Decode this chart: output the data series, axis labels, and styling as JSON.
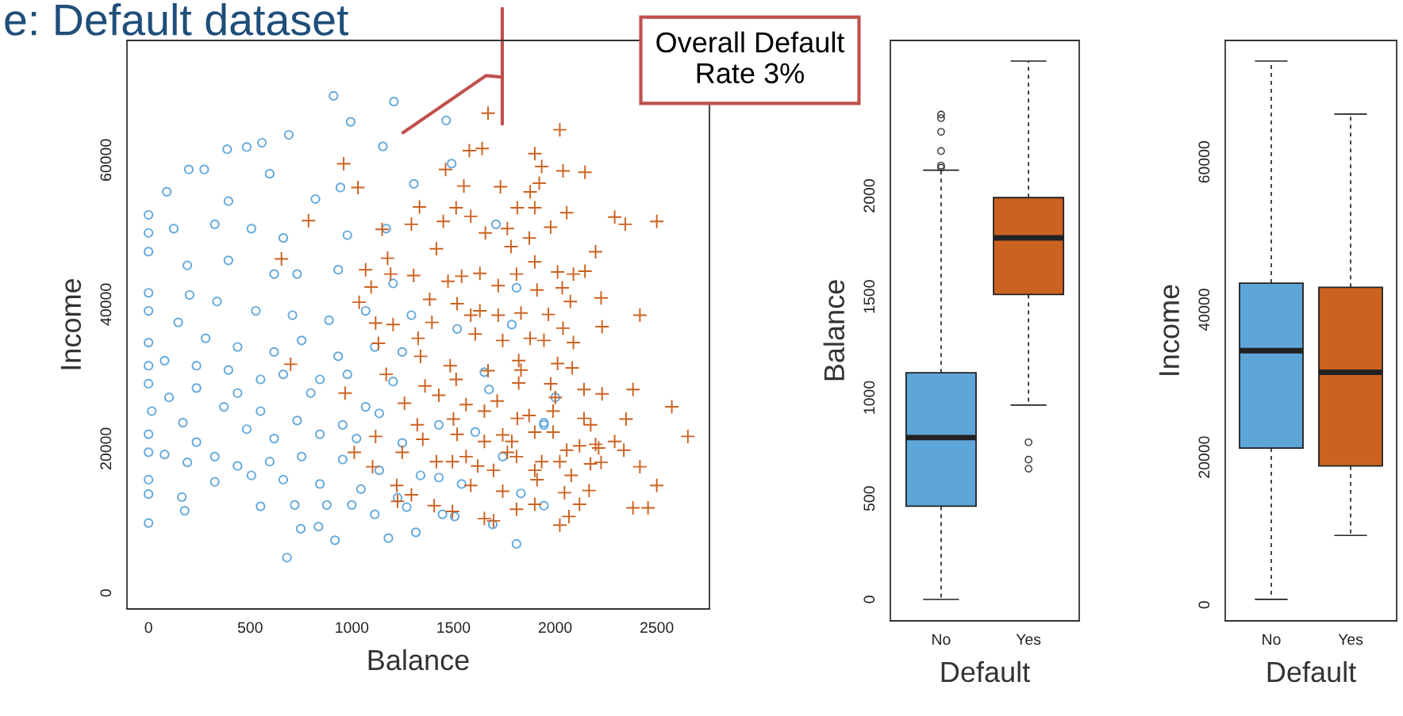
{
  "chart_data": [
    {
      "type": "scatter",
      "title": "e: Default dataset",
      "xlabel": "Balance",
      "ylabel": "Income",
      "xlim": [
        -106,
        2759
      ],
      "ylim": [
        -2215,
        76580
      ],
      "xticks": [
        0,
        500,
        1000,
        1500,
        2000,
        2500
      ],
      "yticks": [
        0,
        20000,
        40000,
        60000
      ],
      "grid": false,
      "annotations": [
        "Overall Default\nRate 3%"
      ],
      "series": [
        {
          "color": "#64a9dc",
          "marker": "circle",
          "x": [
            910,
            1207,
            994,
            1464,
            690,
            387,
            558,
            483,
            1153,
            1491,
            198,
            274,
            596,
            944,
            90,
            1305,
            393,
            821,
            0,
            0,
            0,
            124,
            326,
            506,
            663,
            978,
            1169,
            1709,
            191,
            393,
            618,
            731,
            933,
            1203,
            0,
            0,
            202,
            337,
            528,
            708,
            888,
            1068,
            1293,
            1518,
            1787,
            0,
            0,
            0,
            146,
            281,
            438,
            618,
            753,
            933,
            1113,
            1248,
            79,
            236,
            393,
            551,
            663,
            843,
            978,
            1203,
            1652,
            101,
            236,
            438,
            798,
            1068,
            16,
            371,
            551,
            731,
            955,
            1135,
            1428,
            1945,
            169,
            483,
            618,
            843,
            1023,
            1248,
            1607,
            0,
            0,
            79,
            236,
            326,
            438,
            596,
            753,
            955,
            1135,
            1338,
            1742,
            191,
            326,
            506,
            663,
            843,
            1045,
            1225,
            1428,
            1540,
            1832,
            0,
            0,
            0,
            164,
            178,
            551,
            719,
            877,
            1000,
            1113,
            1270,
            1446,
            1506,
            1945,
            749,
            836,
            917,
            1180,
            1315,
            1693,
            681,
            1810,
            2001,
            1945,
            1675,
            1810
          ],
          "values": [
            68900,
            68100,
            65300,
            65500,
            63500,
            61500,
            62400,
            61800,
            61900,
            59500,
            58700,
            58700,
            58100,
            56200,
            55600,
            56700,
            54300,
            54600,
            52400,
            49900,
            47300,
            50500,
            51100,
            50500,
            49200,
            49600,
            50500,
            51100,
            45400,
            46100,
            44200,
            44200,
            44800,
            42900,
            41600,
            39100,
            41300,
            40400,
            39100,
            38500,
            37800,
            39100,
            38500,
            36600,
            37200,
            34700,
            31500,
            29000,
            37500,
            35300,
            34100,
            33400,
            35000,
            32800,
            34100,
            33400,
            32200,
            31500,
            30900,
            29600,
            30300,
            29600,
            30300,
            29300,
            30600,
            27100,
            28400,
            27700,
            27700,
            25800,
            25200,
            25800,
            25200,
            23900,
            23300,
            24900,
            23300,
            23600,
            23600,
            22700,
            21400,
            22000,
            21400,
            20800,
            22300,
            22000,
            19500,
            19200,
            20900,
            18900,
            17600,
            18200,
            18900,
            18500,
            17000,
            16300,
            18900,
            18100,
            15400,
            16300,
            15700,
            15100,
            14400,
            13200,
            16000,
            15100,
            13800,
            15700,
            13700,
            9700,
            13300,
            11400,
            12000,
            12200,
            12200,
            12200,
            10900,
            11900,
            10900,
            10600,
            12100,
            8900,
            9200,
            7300,
            7600,
            8400,
            9500,
            4900,
            6800,
            27100,
            23300,
            28200,
            42300
          ]
        },
        {
          "color": "#cc6220",
          "marker": "cross",
          "x": [
            1670,
            2023,
            1578,
            1641,
            1900,
            1461,
            1934,
            2039,
            2147,
            960,
            1030,
            1551,
            1731,
            1877,
            1922,
            1333,
            1513,
            1585,
            1814,
            1900,
            2057,
            2293,
            2345,
            2500,
            787,
            1149,
            1293,
            1450,
            1657,
            1765,
            1978,
            1873,
            1416,
            1783,
            2199,
            1900,
            654,
            1068,
            1176,
            1191,
            1304,
            1473,
            1540,
            1630,
            1810,
            2012,
            2090,
            2147,
            1095,
            1720,
            1911,
            2035,
            2226,
            1036,
            1383,
            1518,
            2075,
            1585,
            1630,
            1720,
            1832,
            1967,
            2417,
            1117,
            1203,
            1394,
            1607,
            1877,
            2039,
            2231,
            1131,
            1326,
            1742,
            1945,
            2090,
            1338,
            1821,
            2012,
            699,
            1484,
            1670,
            1832,
            2084,
            1169,
            1513,
            1821,
            1360,
            1978,
            2142,
            2231,
            2383,
            967,
            1428,
            1715,
            2001,
            2574,
            1259,
            1562,
            1652,
            1990,
            2349,
            1322,
            1500,
            1814,
            1872,
            2142,
            2175,
            1117,
            1349,
            1518,
            1742,
            1900,
            1990,
            2653,
            1652,
            1787,
            2120,
            2199,
            2293,
            1248,
            1012,
            1562,
            1765,
            2057,
            2214,
            2338,
            1416,
            1495,
            1810,
            1934,
            2023,
            2174,
            2226,
            1102,
            1619,
            1697,
            1900,
            2417,
            1911,
            2079,
            1221,
            1585,
            1742,
            2167,
            2500,
            1293,
            2046,
            1225,
            1900,
            2120,
            1405,
            1495,
            1810,
            2383,
            2457,
            2023,
            2068,
            1697,
            1652
          ],
          "values": [
            66500,
            64200,
            61300,
            61600,
            60900,
            58700,
            59100,
            58500,
            58300,
            59500,
            56200,
            56400,
            56300,
            55600,
            56800,
            53500,
            53400,
            52200,
            53400,
            53400,
            52700,
            52100,
            51100,
            51500,
            51600,
            50400,
            51100,
            51500,
            49900,
            50500,
            50700,
            49200,
            47700,
            48000,
            47300,
            45900,
            46300,
            44800,
            46400,
            44200,
            44000,
            43200,
            43900,
            44300,
            44200,
            44500,
            44200,
            44600,
            42400,
            42600,
            42000,
            42300,
            40900,
            40300,
            40700,
            40100,
            40400,
            38500,
            39100,
            38500,
            38800,
            38600,
            38500,
            37400,
            37200,
            37500,
            35900,
            35300,
            36700,
            36900,
            34600,
            35300,
            35000,
            35000,
            34700,
            32800,
            32200,
            31800,
            31700,
            31500,
            30800,
            30900,
            31200,
            30300,
            29600,
            29100,
            28700,
            29000,
            28200,
            27600,
            28200,
            27700,
            27400,
            26600,
            27100,
            25800,
            26300,
            26100,
            25200,
            25200,
            24100,
            23300,
            24100,
            24200,
            24600,
            24200,
            23300,
            21700,
            21300,
            22000,
            21900,
            22300,
            22300,
            21700,
            21000,
            21000,
            20400,
            20600,
            21000,
            19500,
            19500,
            18900,
            19500,
            19800,
            20100,
            19800,
            18200,
            18200,
            18900,
            18200,
            18200,
            17900,
            18100,
            17500,
            17600,
            17000,
            17000,
            17500,
            15700,
            16300,
            14900,
            14900,
            14100,
            14200,
            14900,
            13600,
            13900,
            12700,
            12300,
            12300,
            12100,
            11300,
            11600,
            11800,
            11800,
            9400,
            10600,
            10000,
            10300
          ]
        }
      ]
    },
    {
      "type": "box",
      "xlabel": "Default",
      "ylabel": "Balance",
      "categories": [
        "No",
        "Yes"
      ],
      "colors": [
        "#5ea5d8",
        "#cc6220"
      ],
      "ylim": [
        -106,
        2770
      ],
      "yticks": [
        0,
        500,
        1000,
        1500,
        2000
      ],
      "grid": false,
      "boxes": [
        {
          "low": 0,
          "q1": 462,
          "median": 802,
          "q3": 1123,
          "high": 2127,
          "outliers": [
            2140,
            2150,
            2222,
            2317,
            2385,
            2403
          ]
        },
        {
          "low": 963,
          "q1": 1511,
          "median": 1792,
          "q3": 1991,
          "high": 2668,
          "outliers": [
            779,
            693,
            648
          ]
        }
      ]
    },
    {
      "type": "box",
      "xlabel": "Default",
      "ylabel": "Income",
      "categories": [
        "No",
        "Yes"
      ],
      "colors": [
        "#5ea5d8",
        "#cc6220"
      ],
      "ylim": [
        -2167,
        76470
      ],
      "yticks": [
        0,
        20000,
        40000,
        60000
      ],
      "grid": false,
      "boxes": [
        {
          "low": 743,
          "q1": 21240,
          "median": 34430,
          "q3": 43590,
          "high": 73680
        },
        {
          "low": 9412,
          "q1": 18820,
          "median": 31520,
          "q3": 43030,
          "high": 66500
        }
      ]
    }
  ]
}
